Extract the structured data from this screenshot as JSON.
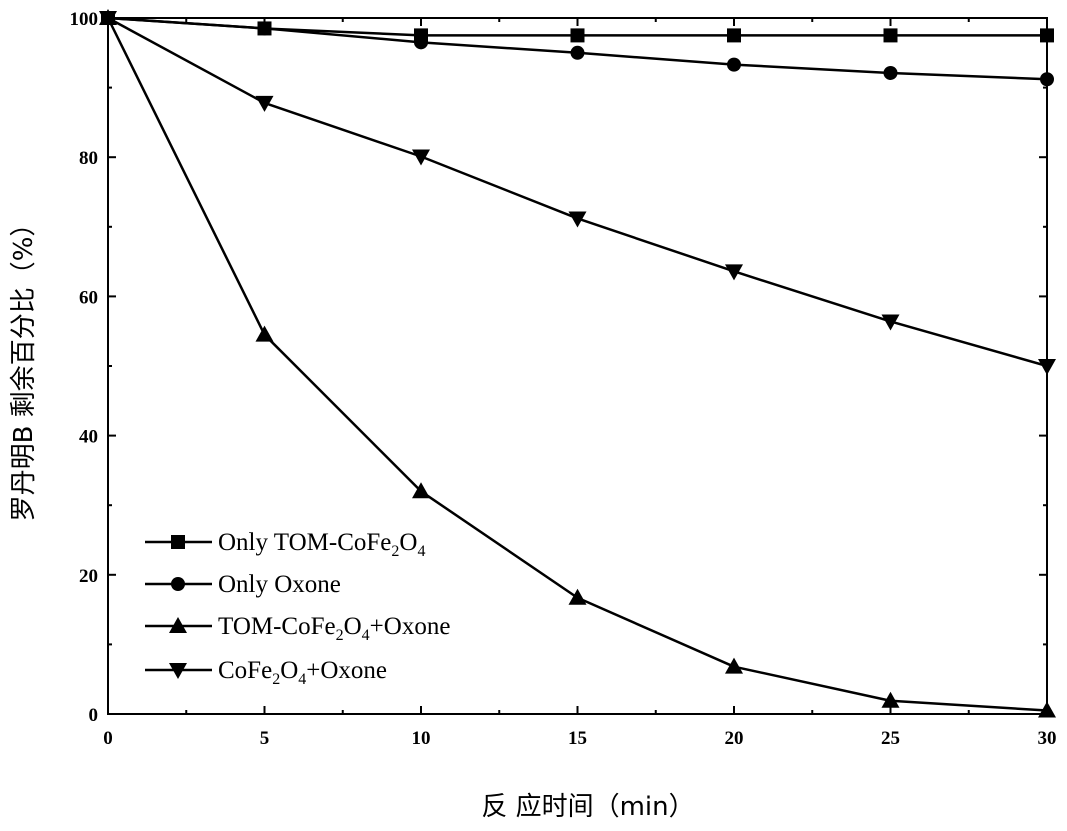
{
  "chart_data": {
    "type": "line",
    "xlabel": "反 应时间（min）",
    "ylabel": "罗丹明B 剩余百分比（%）",
    "xlim": [
      0,
      30
    ],
    "ylim": [
      0,
      100
    ],
    "x_ticks": [
      "0",
      "5",
      "10",
      "15",
      "20",
      "25",
      "30"
    ],
    "y_ticks": [
      "0",
      "20",
      "40",
      "60",
      "80",
      "100"
    ],
    "grid": false,
    "legend_position": "bottom-left",
    "x": [
      0,
      5,
      10,
      15,
      20,
      25,
      30
    ],
    "series": [
      {
        "name": "Only TOM-CoFe2O4",
        "legend_parts": [
          {
            "t": "Only TOM-CoFe"
          },
          {
            "t": "2",
            "sub": true
          },
          {
            "t": "O"
          },
          {
            "t": "4",
            "sub": true
          }
        ],
        "marker": "square",
        "values": [
          100,
          98.5,
          97.5,
          97.5,
          97.5,
          97.5,
          97.5
        ]
      },
      {
        "name": "Only Oxone",
        "legend_parts": [
          {
            "t": " Only Oxone"
          }
        ],
        "marker": "circle",
        "values": [
          100,
          98.5,
          96.5,
          95,
          93.3,
          92.1,
          91.2
        ]
      },
      {
        "name": "TOM-CoFe2O4+Oxone",
        "legend_parts": [
          {
            "t": "TOM-CoFe"
          },
          {
            "t": "2",
            "sub": true
          },
          {
            "t": "O"
          },
          {
            "t": "4",
            "sub": true
          },
          {
            "t": "+Oxone"
          }
        ],
        "marker": "triangle-up",
        "values": [
          100,
          54.5,
          32,
          16.7,
          6.8,
          1.9,
          0.5
        ]
      },
      {
        "name": "CoFe2O4+Oxone",
        "legend_parts": [
          {
            "t": "CoFe"
          },
          {
            "t": "2",
            "sub": true
          },
          {
            "t": "O"
          },
          {
            "t": "4",
            "sub": true
          },
          {
            "t": "+Oxone"
          }
        ],
        "marker": "triangle-down",
        "values": [
          100,
          87.8,
          80.1,
          71.2,
          63.6,
          56.4,
          50
        ]
      }
    ],
    "colors": {
      "line": "#000000",
      "background": "#ffffff"
    }
  }
}
